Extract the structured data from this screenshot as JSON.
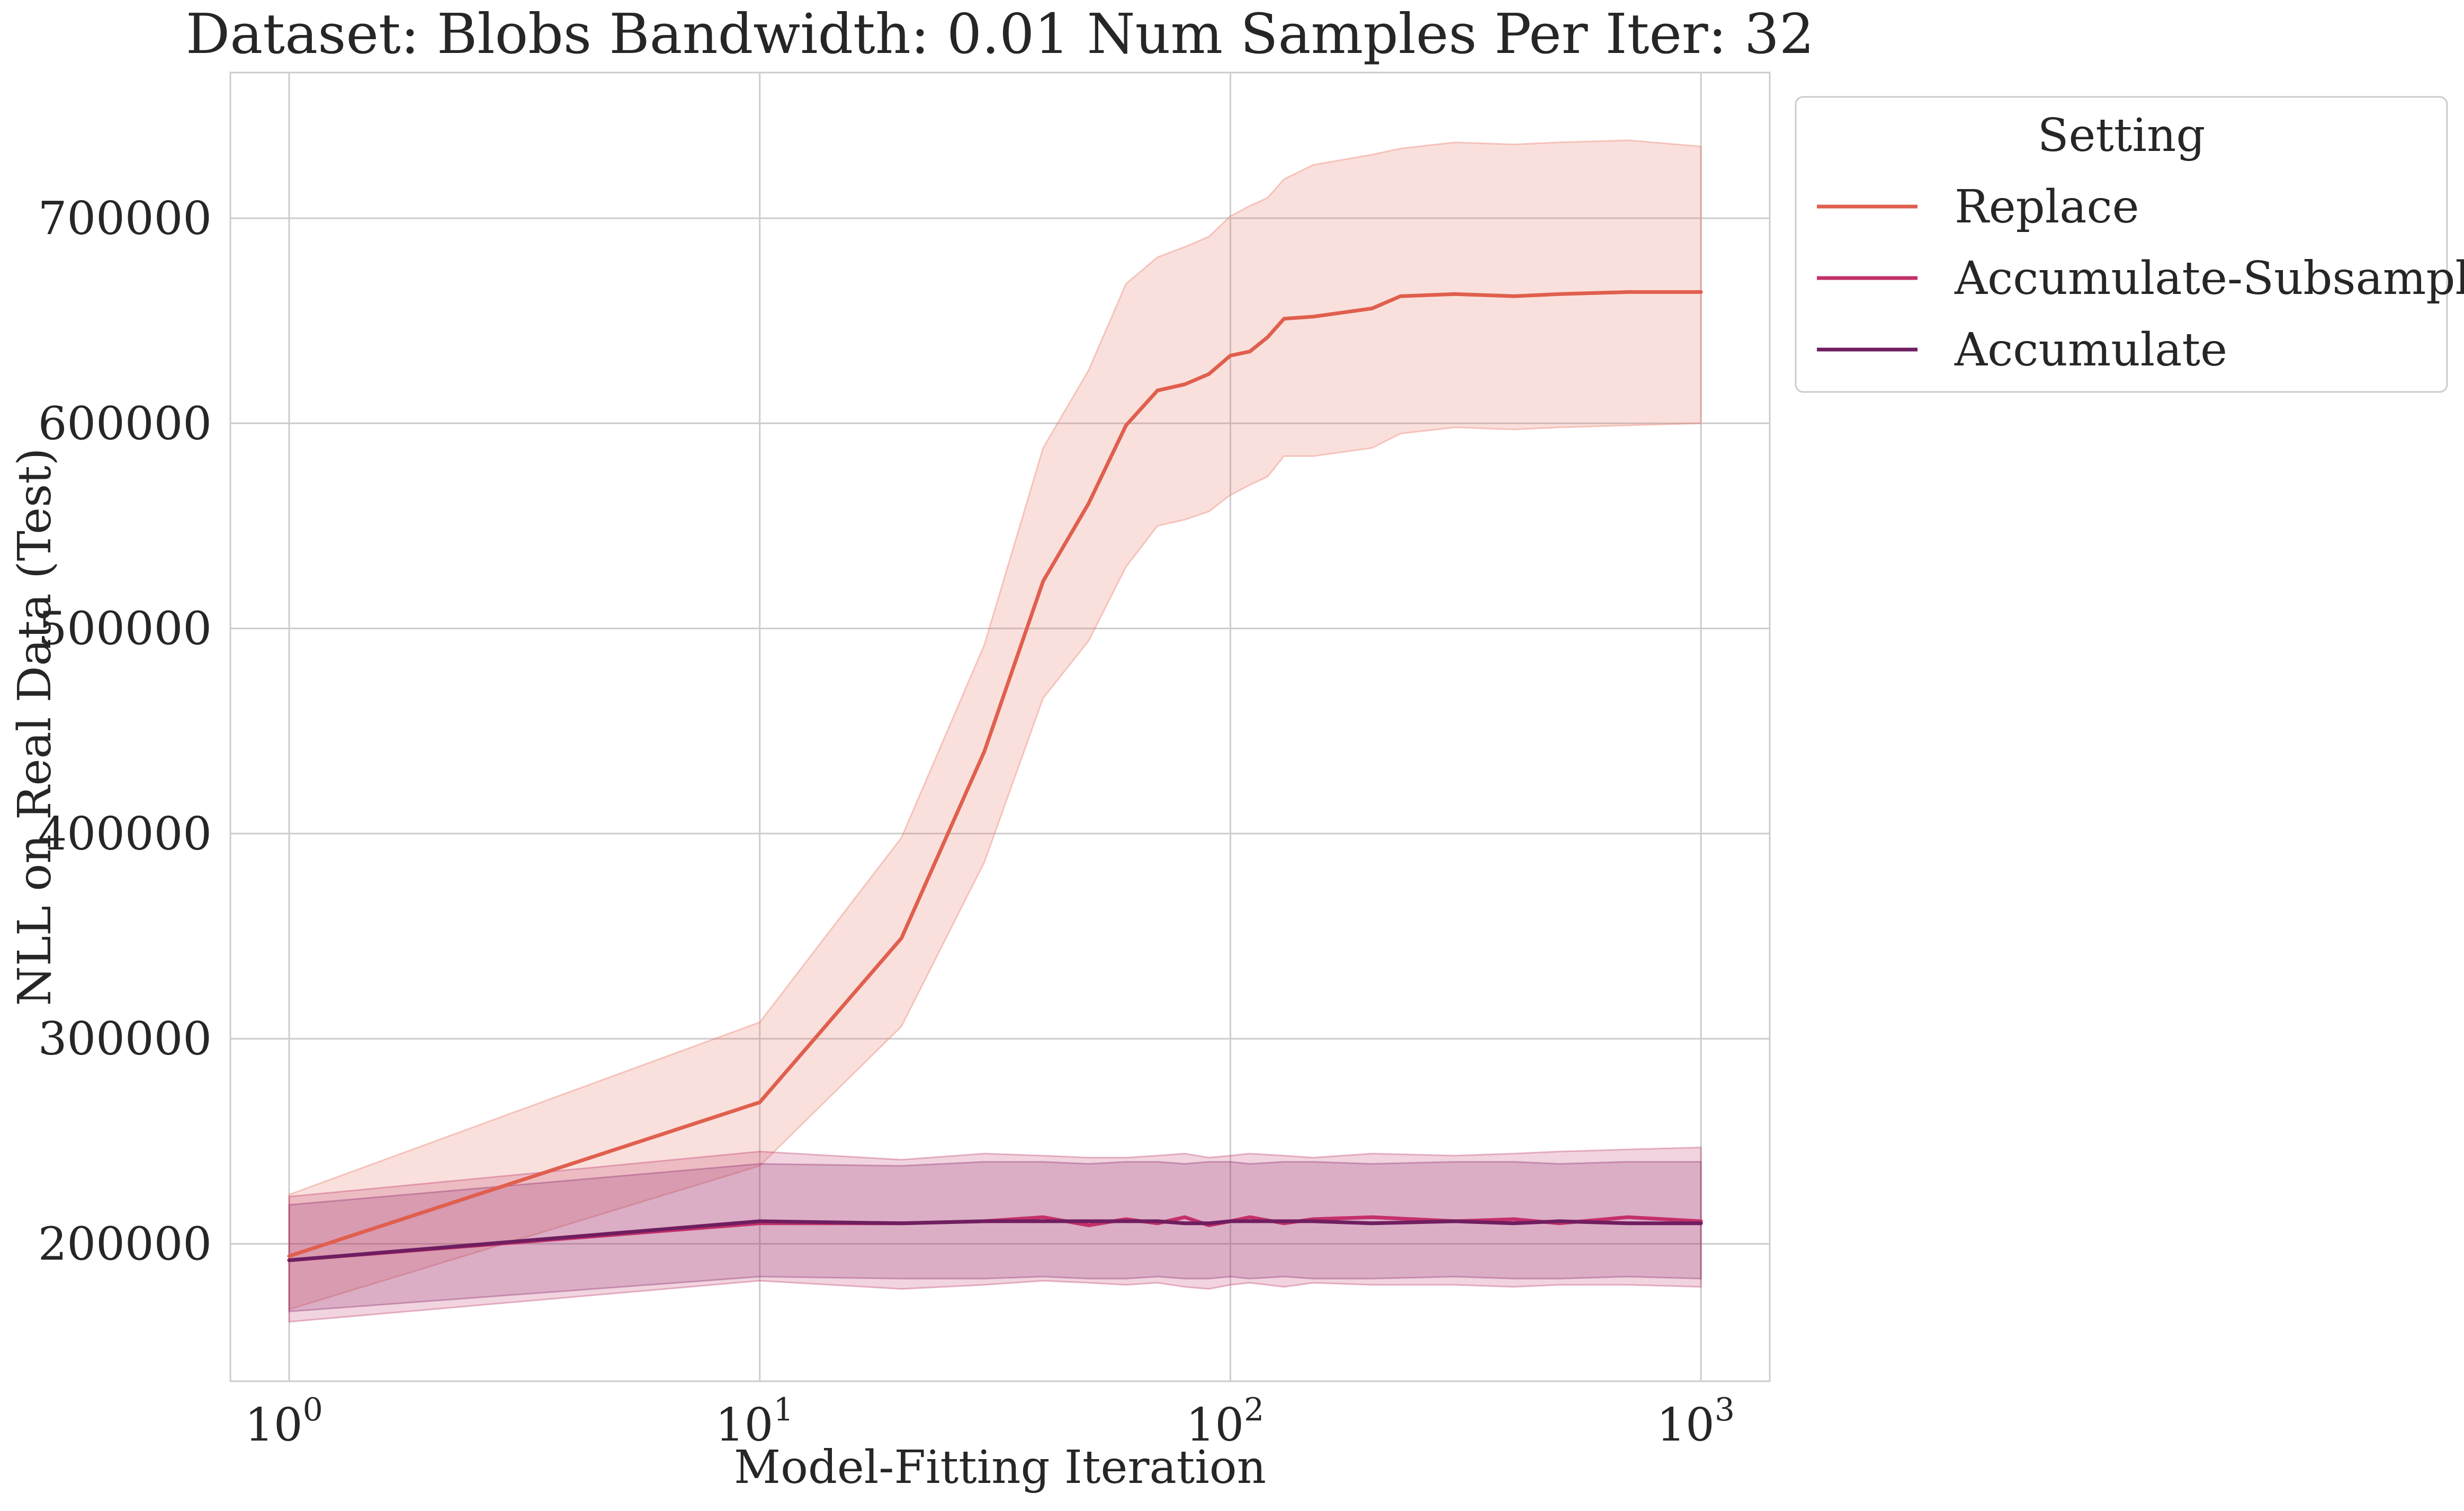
{
  "chart_data": {
    "type": "line",
    "title": "Dataset: Blobs Bandwidth: 0.01 Num Samples Per Iter: 32",
    "xlabel": "Model-Fitting Iteration",
    "ylabel": "NLL on Real Data (Test)",
    "xscale": "log",
    "xlim": [
      0.75,
      1400
    ],
    "ylim": [
      133000,
      771000
    ],
    "x_ticks": [
      {
        "value": 1,
        "base": "10",
        "exp": "0"
      },
      {
        "value": 10,
        "base": "10",
        "exp": "1"
      },
      {
        "value": 100,
        "base": "10",
        "exp": "2"
      },
      {
        "value": 1000,
        "base": "10",
        "exp": "3"
      }
    ],
    "y_ticks": [
      {
        "value": 200000,
        "label": "200000"
      },
      {
        "value": 300000,
        "label": "300000"
      },
      {
        "value": 400000,
        "label": "400000"
      },
      {
        "value": 500000,
        "label": "500000"
      },
      {
        "value": 600000,
        "label": "600000"
      },
      {
        "value": 700000,
        "label": "700000"
      }
    ],
    "grid": true,
    "legend": {
      "title": "Setting",
      "placement": "outside-top-right"
    },
    "series": [
      {
        "name": "Replace",
        "color": "#e05f4e",
        "band_color": "#e8735f",
        "x": [
          1,
          10,
          20,
          30,
          40,
          50,
          60,
          70,
          80,
          90,
          100,
          110,
          120,
          130,
          150,
          200,
          230,
          300,
          400,
          500,
          700,
          1000
        ],
        "y": [
          194000,
          269000,
          349000,
          440000,
          523000,
          561000,
          599000,
          616000,
          619000,
          624000,
          633000,
          635000,
          642000,
          651000,
          652000,
          656000,
          662000,
          663000,
          662000,
          663000,
          664000,
          664000
        ],
        "lower": [
          168000,
          238000,
          306000,
          386000,
          466000,
          494000,
          530000,
          550000,
          553000,
          557000,
          565000,
          570000,
          574000,
          584000,
          584000,
          588000,
          595000,
          598000,
          597000,
          598000,
          599000,
          600000
        ],
        "upper": [
          224000,
          308000,
          398000,
          492000,
          588000,
          626000,
          668000,
          681000,
          686000,
          691000,
          701000,
          706000,
          710000,
          719000,
          726000,
          731000,
          734000,
          737000,
          736000,
          737000,
          738000,
          735000
        ]
      },
      {
        "name": "Accumulate-Subsample",
        "color": "#c4306a",
        "band_color": "#c13a6c",
        "x": [
          1,
          10,
          20,
          30,
          40,
          50,
          60,
          70,
          80,
          90,
          100,
          110,
          130,
          150,
          200,
          300,
          400,
          500,
          700,
          1000
        ],
        "y": [
          192000,
          210000,
          210000,
          211000,
          213000,
          209000,
          212000,
          210000,
          213000,
          209000,
          211000,
          213000,
          210000,
          212000,
          213000,
          211000,
          212000,
          210000,
          213000,
          211000
        ],
        "lower": [
          162000,
          182000,
          178000,
          180000,
          182000,
          181000,
          180000,
          181000,
          179000,
          178000,
          180000,
          181000,
          179000,
          181000,
          180000,
          180000,
          179000,
          180000,
          180000,
          179000
        ],
        "upper": [
          223000,
          245000,
          241000,
          244000,
          243000,
          242000,
          242000,
          243000,
          244000,
          242000,
          243000,
          244000,
          243000,
          242000,
          244000,
          243000,
          244000,
          245000,
          246000,
          247000
        ]
      },
      {
        "name": "Accumulate",
        "color": "#6f1e60",
        "band_color": "#8c2a6e",
        "x": [
          1,
          10,
          20,
          30,
          40,
          50,
          60,
          70,
          80,
          90,
          100,
          110,
          130,
          150,
          200,
          300,
          400,
          500,
          700,
          1000
        ],
        "y": [
          192000,
          211000,
          210000,
          211000,
          211000,
          211000,
          211000,
          211000,
          210000,
          210000,
          211000,
          211000,
          211000,
          211000,
          210000,
          211000,
          210000,
          211000,
          210000,
          210000
        ],
        "lower": [
          167000,
          184000,
          183000,
          183000,
          184000,
          183000,
          183000,
          184000,
          183000,
          183000,
          184000,
          183000,
          184000,
          183000,
          183000,
          184000,
          183000,
          183000,
          184000,
          183000
        ],
        "upper": [
          219000,
          239000,
          238000,
          240000,
          240000,
          239000,
          240000,
          240000,
          239000,
          240000,
          240000,
          239000,
          240000,
          240000,
          239000,
          240000,
          240000,
          239000,
          240000,
          240000
        ]
      }
    ]
  }
}
